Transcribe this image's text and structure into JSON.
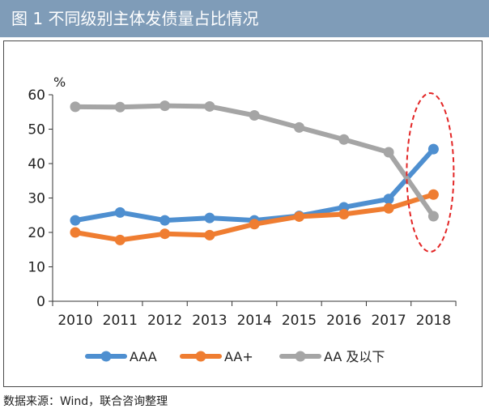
{
  "header": {
    "title": "图 1 不同级别主体发债量占比情况"
  },
  "source": "数据来源：Wind，联合咨询整理",
  "colors": {
    "header": "#7f9cb8",
    "AAA": "#4e8fd0",
    "AA+": "#ef7d31",
    "AA及以下": "#a5a5a5",
    "highlight": "#e32626"
  },
  "chart_data": {
    "type": "line",
    "title": "",
    "xlabel": "",
    "ylabel": "%",
    "ylim": [
      0,
      60
    ],
    "yticks": [
      "0",
      "10",
      "20",
      "30",
      "40",
      "50",
      "60"
    ],
    "categories": [
      "2010",
      "2011",
      "2012",
      "2013",
      "2014",
      "2015",
      "2016",
      "2017",
      "2018"
    ],
    "series": [
      {
        "name": "AAA",
        "values": [
          23.5,
          25.8,
          23.5,
          24.2,
          23.5,
          24.8,
          27.3,
          29.7,
          44.2
        ]
      },
      {
        "name": "AA+",
        "values": [
          20.0,
          17.8,
          19.6,
          19.2,
          22.4,
          24.6,
          25.3,
          27.0,
          31.0
        ]
      },
      {
        "name": "AA 及以下",
        "values": [
          56.5,
          56.4,
          56.8,
          56.6,
          54.0,
          50.5,
          47.0,
          43.3,
          24.7
        ]
      }
    ],
    "annotation": "red dashed ellipse highlighting 2018",
    "legend": "bottom"
  }
}
